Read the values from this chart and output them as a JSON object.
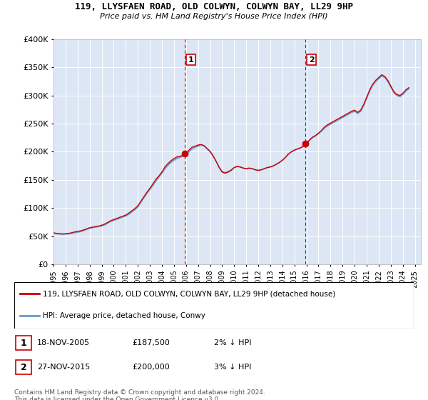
{
  "title": "119, LLYSFAEN ROAD, OLD COLWYN, COLWYN BAY, LL29 9HP",
  "subtitle": "Price paid vs. HM Land Registry's House Price Index (HPI)",
  "ylim": [
    0,
    400000
  ],
  "xlim_start": 1995.0,
  "xlim_end": 2025.5,
  "bg_color": "#dce6f5",
  "hpi_color": "#6699cc",
  "property_color": "#cc0000",
  "marker_color": "#cc0000",
  "vline_color": "#cc0000",
  "grid_color": "#ffffff",
  "legend_label_property": "119, LLYSFAEN ROAD, OLD COLWYN, COLWYN BAY, LL29 9HP (detached house)",
  "legend_label_hpi": "HPI: Average price, detached house, Conwy",
  "transactions": [
    {
      "number": 1,
      "date": "18-NOV-2005",
      "price": "£187,500",
      "hpi_diff": "2% ↓ HPI",
      "year": 2005.88
    },
    {
      "number": 2,
      "date": "27-NOV-2015",
      "price": "£200,000",
      "hpi_diff": "3% ↓ HPI",
      "year": 2015.9
    }
  ],
  "footer": "Contains HM Land Registry data © Crown copyright and database right 2024.\nThis data is licensed under the Open Government Licence v3.0.",
  "hpi_data_x": [
    1995.0,
    1995.25,
    1995.5,
    1995.75,
    1996.0,
    1996.25,
    1996.5,
    1996.75,
    1997.0,
    1997.25,
    1997.5,
    1997.75,
    1998.0,
    1998.25,
    1998.5,
    1998.75,
    1999.0,
    1999.25,
    1999.5,
    1999.75,
    2000.0,
    2000.25,
    2000.5,
    2000.75,
    2001.0,
    2001.25,
    2001.5,
    2001.75,
    2002.0,
    2002.25,
    2002.5,
    2002.75,
    2003.0,
    2003.25,
    2003.5,
    2003.75,
    2004.0,
    2004.25,
    2004.5,
    2004.75,
    2005.0,
    2005.25,
    2005.5,
    2005.75,
    2006.0,
    2006.25,
    2006.5,
    2006.75,
    2007.0,
    2007.25,
    2007.5,
    2007.75,
    2008.0,
    2008.25,
    2008.5,
    2008.75,
    2009.0,
    2009.25,
    2009.5,
    2009.75,
    2010.0,
    2010.25,
    2010.5,
    2010.75,
    2011.0,
    2011.25,
    2011.5,
    2011.75,
    2012.0,
    2012.25,
    2012.5,
    2012.75,
    2013.0,
    2013.25,
    2013.5,
    2013.75,
    2014.0,
    2014.25,
    2014.5,
    2014.75,
    2015.0,
    2015.25,
    2015.5,
    2015.75,
    2016.0,
    2016.25,
    2016.5,
    2016.75,
    2017.0,
    2017.25,
    2017.5,
    2017.75,
    2018.0,
    2018.25,
    2018.5,
    2018.75,
    2019.0,
    2019.25,
    2019.5,
    2019.75,
    2020.0,
    2020.25,
    2020.5,
    2020.75,
    2021.0,
    2021.25,
    2021.5,
    2021.75,
    2022.0,
    2022.25,
    2022.5,
    2022.75,
    2023.0,
    2023.25,
    2023.5,
    2023.75,
    2024.0,
    2024.25,
    2024.5
  ],
  "hpi_data_y": [
    55000,
    54500,
    53800,
    53200,
    53700,
    54200,
    55100,
    56100,
    57100,
    58100,
    60100,
    62100,
    64100,
    65100,
    66100,
    67100,
    68100,
    70100,
    73100,
    76100,
    78100,
    80100,
    82100,
    84100,
    86100,
    89100,
    93100,
    97100,
    102100,
    110100,
    118100,
    126100,
    133100,
    140100,
    148100,
    155100,
    162100,
    170100,
    176100,
    181100,
    185100,
    188100,
    190100,
    192100,
    195100,
    200100,
    205100,
    208100,
    210100,
    212100,
    210100,
    205100,
    200100,
    192100,
    183100,
    173100,
    165100,
    163100,
    165100,
    168100,
    172100,
    174100,
    173100,
    171100,
    170100,
    171100,
    170100,
    168100,
    167100,
    168100,
    170100,
    172100,
    173100,
    175100,
    178100,
    181100,
    185100,
    190100,
    196100,
    200100,
    203100,
    205100,
    207100,
    210100,
    215100,
    220100,
    225100,
    228100,
    232100,
    237100,
    242100,
    246100,
    249100,
    252100,
    255100,
    258100,
    261100,
    264100,
    267100,
    270100,
    272100,
    268100,
    272100,
    282100,
    295100,
    308100,
    318100,
    325100,
    330100,
    335100,
    332100,
    325100,
    315100,
    305100,
    300100,
    298100,
    302100,
    308100,
    312100
  ],
  "property_data_x": [
    1995.0,
    1995.25,
    1995.5,
    1995.75,
    1996.0,
    1996.25,
    1996.5,
    1996.75,
    1997.0,
    1997.25,
    1997.5,
    1997.75,
    1998.0,
    1998.25,
    1998.5,
    1998.75,
    1999.0,
    1999.25,
    1999.5,
    1999.75,
    2000.0,
    2000.25,
    2000.5,
    2000.75,
    2001.0,
    2001.25,
    2001.5,
    2001.75,
    2002.0,
    2002.25,
    2002.5,
    2002.75,
    2003.0,
    2003.25,
    2003.5,
    2003.75,
    2004.0,
    2004.25,
    2004.5,
    2004.75,
    2005.0,
    2005.25,
    2005.5,
    2005.75,
    2006.0,
    2006.25,
    2006.5,
    2006.75,
    2007.0,
    2007.25,
    2007.5,
    2007.75,
    2008.0,
    2008.25,
    2008.5,
    2008.75,
    2009.0,
    2009.25,
    2009.5,
    2009.75,
    2010.0,
    2010.25,
    2010.5,
    2010.75,
    2011.0,
    2011.25,
    2011.5,
    2011.75,
    2012.0,
    2012.25,
    2012.5,
    2012.75,
    2013.0,
    2013.25,
    2013.5,
    2013.75,
    2014.0,
    2014.25,
    2014.5,
    2014.75,
    2015.0,
    2015.25,
    2015.5,
    2015.75,
    2016.0,
    2016.25,
    2016.5,
    2016.75,
    2017.0,
    2017.25,
    2017.5,
    2017.75,
    2018.0,
    2018.25,
    2018.5,
    2018.75,
    2019.0,
    2019.25,
    2019.5,
    2019.75,
    2020.0,
    2020.25,
    2020.5,
    2020.75,
    2021.0,
    2021.25,
    2021.5,
    2021.75,
    2022.0,
    2022.25,
    2022.5,
    2022.75,
    2023.0,
    2023.25,
    2023.5,
    2023.75,
    2024.0,
    2024.25,
    2024.5
  ],
  "property_data_y": [
    56000,
    55000,
    54500,
    54000,
    54500,
    55000,
    56000,
    57500,
    58500,
    59500,
    61000,
    63000,
    65000,
    66000,
    67000,
    68000,
    69500,
    71500,
    74500,
    77500,
    79500,
    81500,
    83500,
    85500,
    87500,
    91000,
    95000,
    99000,
    104000,
    112000,
    120000,
    128000,
    135000,
    143000,
    151000,
    157000,
    164000,
    173000,
    179000,
    184000,
    188000,
    191000,
    192000,
    194000,
    197000,
    203000,
    208000,
    210000,
    212000,
    213000,
    211000,
    206000,
    201000,
    193000,
    183000,
    172000,
    164000,
    162000,
    164000,
    167000,
    172000,
    174000,
    173000,
    171000,
    170000,
    171000,
    170000,
    168000,
    167000,
    168000,
    170000,
    172000,
    173000,
    175000,
    178000,
    181000,
    185000,
    190000,
    196000,
    200000,
    203000,
    205000,
    207000,
    210000,
    215000,
    221000,
    226000,
    229000,
    233000,
    238000,
    244000,
    248000,
    251000,
    254000,
    257000,
    260000,
    263000,
    266000,
    269000,
    272000,
    274000,
    270000,
    274000,
    284000,
    297000,
    310000,
    320000,
    327000,
    332000,
    337000,
    334000,
    327000,
    317000,
    307000,
    302000,
    300000,
    304000,
    310000,
    314000
  ]
}
